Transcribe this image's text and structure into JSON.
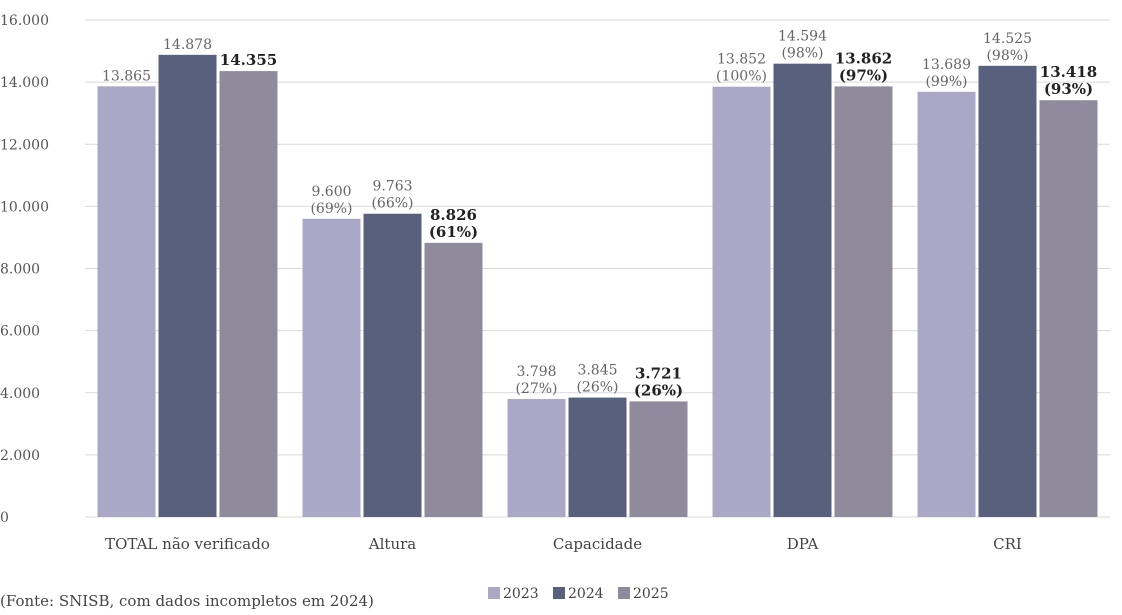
{
  "chart_data": {
    "type": "bar",
    "categories": [
      "TOTAL não verificado",
      "Altura",
      "Capacidade",
      "DPA",
      "CRI"
    ],
    "series": [
      {
        "name": "2023",
        "color": "#aaa8c6",
        "values": [
          13865,
          9600,
          3798,
          13852,
          13689
        ],
        "labels": [
          [
            "13.865"
          ],
          [
            "9.600",
            "(69%)"
          ],
          [
            "3.798",
            "(27%)"
          ],
          [
            "13.852",
            "(100%)"
          ],
          [
            "13.689",
            "(99%)"
          ]
        ],
        "bold": false
      },
      {
        "name": "2024",
        "color": "#58607e",
        "values": [
          14878,
          9763,
          3845,
          14594,
          14525
        ],
        "labels": [
          [
            "14.878"
          ],
          [
            "9.763",
            "(66%)"
          ],
          [
            "3.845",
            "(26%)"
          ],
          [
            "14.594",
            "(98%)"
          ],
          [
            "14.525",
            "(98%)"
          ]
        ],
        "bold": false
      },
      {
        "name": "2025",
        "color": "#8f8b9c",
        "values": [
          14355,
          8826,
          3721,
          13862,
          13418
        ],
        "labels": [
          [
            "14.355"
          ],
          [
            "8.826",
            "(61%)"
          ],
          [
            "3.721",
            "(26%)"
          ],
          [
            "13.862",
            "(97%)"
          ],
          [
            "13.418",
            "(93%)"
          ]
        ],
        "bold": true
      }
    ],
    "ylim": [
      0,
      16000
    ],
    "yticks": [
      "0",
      "2.000",
      "4.000",
      "6.000",
      "8.000",
      "10.000",
      "12.000",
      "14.000",
      "16.000"
    ],
    "grid": true,
    "legend": "bottom"
  },
  "source_note": "(Fonte: SNISB, com dados incompletos em 2024)",
  "colors": {
    "grid": "#d9d9d9"
  }
}
